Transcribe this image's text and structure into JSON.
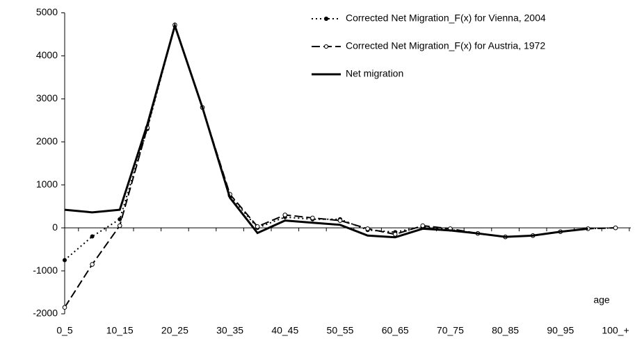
{
  "chart_data": {
    "type": "line",
    "x_label": "age",
    "categories": [
      "0_5",
      null,
      "10_15",
      null,
      "20_25",
      null,
      "30_35",
      null,
      "40_45",
      null,
      "50_55",
      null,
      "60_65",
      null,
      "70_75",
      null,
      "80_85",
      null,
      "90_95",
      null,
      "100_+"
    ],
    "series": [
      {
        "name": "Corrected Net Migration_F(x) for Vienna, 2004",
        "color": "#000000",
        "dash": "dotted",
        "marker": "filled",
        "values": [
          -750,
          -200,
          200,
          2300,
          4700,
          2800,
          750,
          0,
          250,
          200,
          200,
          -50,
          -100,
          30,
          -40,
          -130,
          -210,
          -180,
          -90,
          -20,
          0
        ]
      },
      {
        "name": "Corrected Net Migration_F(x) for Austria, 1972",
        "color": "#000000",
        "dash": "dashed",
        "marker": "open",
        "values": [
          -1850,
          -850,
          50,
          2330,
          4720,
          2800,
          780,
          30,
          300,
          230,
          170,
          -20,
          -150,
          50,
          -20,
          -130,
          -210,
          -180,
          -90,
          -20,
          0
        ]
      },
      {
        "name": "Net migration",
        "color": "#000000",
        "dash": "solid",
        "marker": "none",
        "values": [
          420,
          360,
          420,
          2400,
          4700,
          2800,
          700,
          -120,
          170,
          120,
          70,
          -180,
          -220,
          -20,
          -60,
          -130,
          -210,
          -180,
          -90,
          -20,
          null
        ]
      }
    ],
    "ylim": [
      -2000,
      5000
    ],
    "yticks": [
      -2000,
      -1000,
      0,
      1000,
      2000,
      3000,
      4000,
      5000
    ],
    "grid": false,
    "legend": "top-right"
  }
}
